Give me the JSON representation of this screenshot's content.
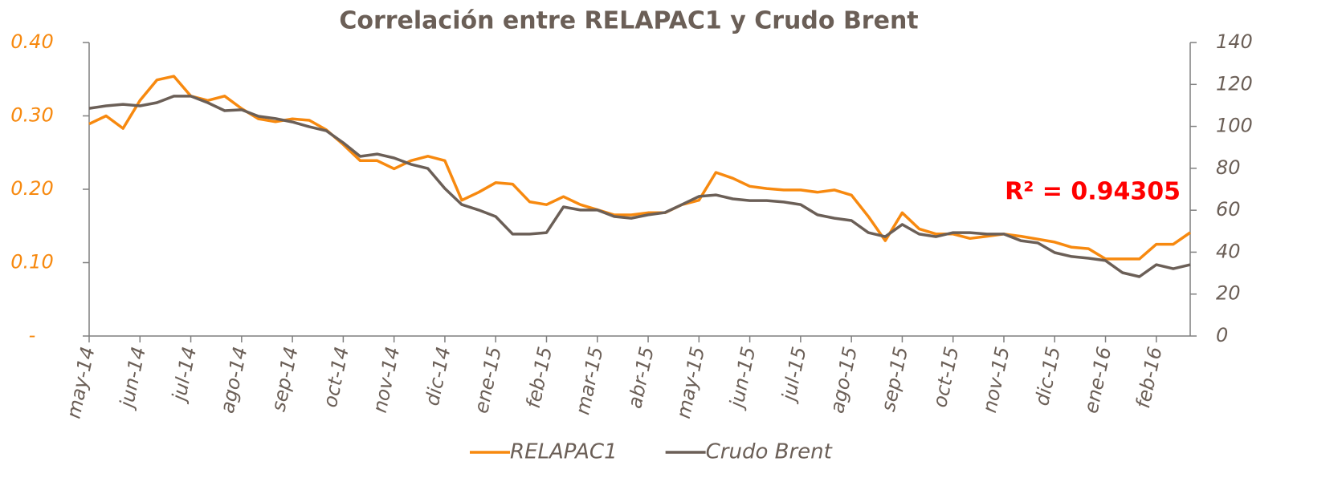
{
  "chart_data": {
    "type": "line",
    "title": "Correlación entre RELAPAC1 y Crudo Brent",
    "annotation": "R² = 0.94305",
    "categories": [
      "may-14",
      null,
      null,
      "jun-14",
      null,
      null,
      "jul-14",
      null,
      null,
      "ago-14",
      null,
      null,
      "sep-14",
      null,
      null,
      "oct-14",
      null,
      null,
      "nov-14",
      null,
      null,
      "dic-14",
      null,
      null,
      "ene-15",
      null,
      null,
      "feb-15",
      null,
      null,
      "mar-15",
      null,
      null,
      "abr-15",
      null,
      null,
      "may-15",
      null,
      null,
      "jun-15",
      null,
      null,
      "jul-15",
      null,
      null,
      "ago-15",
      null,
      null,
      "sep-15",
      null,
      null,
      "oct-15",
      null,
      null,
      "nov-15",
      null,
      null,
      "dic-15",
      null,
      null,
      "ene-16",
      null,
      null,
      "feb-16",
      null,
      null
    ],
    "series": [
      {
        "name": "RELAPAC1",
        "color": "#f7890f",
        "axis": "y",
        "values": [
          0.289,
          0.3,
          0.283,
          0.321,
          0.349,
          0.354,
          0.327,
          0.321,
          0.327,
          0.31,
          0.296,
          0.292,
          0.296,
          0.294,
          0.281,
          0.261,
          0.239,
          0.239,
          0.228,
          0.239,
          0.245,
          0.239,
          0.185,
          0.196,
          0.209,
          0.207,
          0.183,
          0.179,
          0.19,
          0.179,
          0.172,
          0.165,
          0.165,
          0.168,
          0.168,
          0.179,
          0.185,
          0.223,
          0.215,
          0.204,
          0.201,
          0.199,
          0.199,
          0.196,
          0.199,
          0.192,
          0.163,
          0.13,
          0.168,
          0.146,
          0.139,
          0.139,
          0.133,
          0.136,
          0.139,
          0.136,
          0.132,
          0.128,
          0.121,
          0.119,
          0.105,
          0.105,
          0.105,
          0.125,
          0.125,
          0.141
        ]
      },
      {
        "name": "Crudo Brent",
        "color": "#6b5f57",
        "axis": "y2",
        "values": [
          108.6,
          109.8,
          110.5,
          109.8,
          111.3,
          114.4,
          114.4,
          111.3,
          107.5,
          107.9,
          104.8,
          103.7,
          102.1,
          99.8,
          97.9,
          92.2,
          85.7,
          86.8,
          84.9,
          81.9,
          79.9,
          70.4,
          62.7,
          60.1,
          57.0,
          48.6,
          48.6,
          49.3,
          61.6,
          60.1,
          60.1,
          57.0,
          56.2,
          57.8,
          58.9,
          62.7,
          66.6,
          67.3,
          65.4,
          64.6,
          64.6,
          63.9,
          62.7,
          57.8,
          56.2,
          55.1,
          49.3,
          47.4,
          53.2,
          48.6,
          47.4,
          49.3,
          49.3,
          48.6,
          48.6,
          45.5,
          44.4,
          39.8,
          37.9,
          37.1,
          36.0,
          30.2,
          28.3,
          34.0,
          32.1,
          34.0
        ]
      }
    ],
    "ylim": [
      0,
      0.4
    ],
    "yticks": [
      {
        "value": 0,
        "label": "-"
      },
      {
        "value": 0.1,
        "label": "0.10"
      },
      {
        "value": 0.2,
        "label": "0.20"
      },
      {
        "value": 0.3,
        "label": "0.30"
      },
      {
        "value": 0.4,
        "label": "0.40"
      }
    ],
    "y2lim": [
      0,
      140
    ],
    "y2ticks": [
      0,
      20,
      40,
      60,
      80,
      100,
      120,
      140
    ],
    "legend": "bottom"
  }
}
